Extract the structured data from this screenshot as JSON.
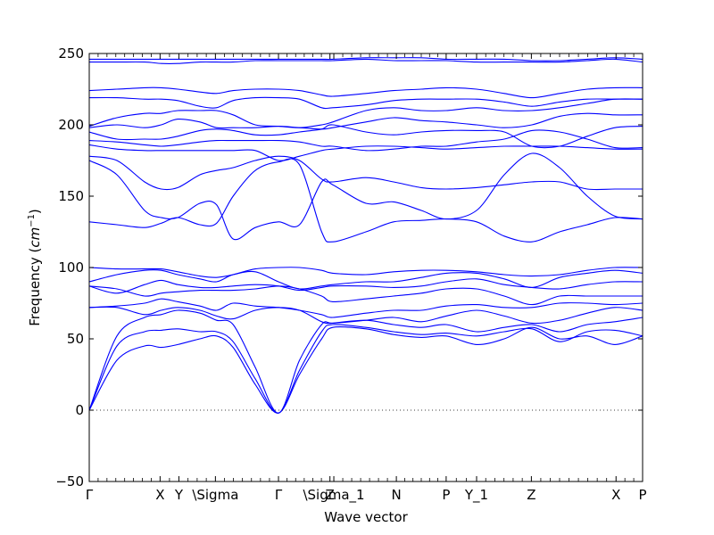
{
  "chart_data": {
    "type": "line",
    "title": "",
    "xlabel": "Wave vector",
    "ylabel": "Frequency (",
    "ylabel_math": "cm",
    "ylabel_exp": "−1",
    "ylabel_close": ")",
    "xlim": [
      0,
      1
    ],
    "ylim": [
      -50,
      250
    ],
    "yticks": [
      -50,
      0,
      50,
      100,
      150,
      200,
      250
    ],
    "zero_line": "dotted",
    "line_color": "#0000ff",
    "special_points": [
      {
        "label": "Γ",
        "x": 0.0
      },
      {
        "label": "X",
        "x": 0.128
      },
      {
        "label": "Y",
        "x": 0.162
      },
      {
        "label": "\\Sigma",
        "x": 0.228
      },
      {
        "label": "Γ",
        "x": 0.342
      },
      {
        "label": "Z",
        "x": 0.435
      },
      {
        "label": "\\Sigma_1",
        "x": 0.442
      },
      {
        "label": "N",
        "x": 0.555
      },
      {
        "label": "P",
        "x": 0.645
      },
      {
        "label": "Y_1",
        "x": 0.7
      },
      {
        "label": "Z",
        "x": 0.799
      },
      {
        "label": "X",
        "x": 0.952
      },
      {
        "label": "P",
        "x": 1.0
      }
    ],
    "series": [
      {
        "x": [
          0,
          0.05,
          0.1,
          0.13,
          0.16,
          0.2,
          0.23,
          0.26,
          0.3,
          0.342,
          0.38,
          0.42,
          0.44,
          0.5,
          0.55,
          0.6,
          0.645,
          0.7,
          0.75,
          0.8,
          0.85,
          0.9,
          0.95,
          1.0
        ],
        "values": [
          0,
          35,
          45,
          44,
          46,
          50,
          52,
          44,
          18,
          -2,
          25,
          50,
          58,
          57,
          53,
          51,
          52,
          46,
          50,
          58,
          50,
          52,
          46,
          52
        ]
      },
      {
        "x": [
          0,
          0.05,
          0.1,
          0.13,
          0.16,
          0.2,
          0.23,
          0.26,
          0.3,
          0.342,
          0.38,
          0.42,
          0.44,
          0.5,
          0.55,
          0.6,
          0.645,
          0.7,
          0.75,
          0.8,
          0.85,
          0.9,
          0.95,
          1.0
        ],
        "values": [
          0,
          45,
          55,
          56,
          57,
          55,
          55,
          48,
          22,
          -2,
          28,
          55,
          60,
          58,
          55,
          53,
          54,
          52,
          55,
          57,
          48,
          55,
          56,
          52
        ]
      },
      {
        "x": [
          0,
          0.05,
          0.1,
          0.13,
          0.16,
          0.2,
          0.23,
          0.26,
          0.3,
          0.342,
          0.38,
          0.42,
          0.44,
          0.5,
          0.55,
          0.6,
          0.645,
          0.7,
          0.75,
          0.8,
          0.85,
          0.9,
          0.95,
          1.0
        ],
        "values": [
          0,
          52,
          65,
          67,
          70,
          68,
          63,
          60,
          30,
          -2,
          35,
          60,
          61,
          63,
          60,
          58,
          60,
          55,
          58,
          60,
          55,
          60,
          62,
          65
        ]
      },
      {
        "x": [
          0,
          0.05,
          0.1,
          0.13,
          0.16,
          0.2,
          0.23,
          0.26,
          0.3,
          0.342,
          0.38,
          0.42,
          0.44,
          0.5,
          0.55,
          0.6,
          0.645,
          0.7,
          0.75,
          0.8,
          0.85,
          0.9,
          0.95,
          1.0
        ],
        "values": [
          72,
          72,
          67,
          70,
          72,
          70,
          66,
          64,
          70,
          72,
          70,
          62,
          61,
          63,
          65,
          62,
          66,
          70,
          66,
          61,
          63,
          68,
          72,
          70
        ]
      },
      {
        "x": [
          0,
          0.05,
          0.1,
          0.13,
          0.16,
          0.2,
          0.23,
          0.26,
          0.3,
          0.342,
          0.38,
          0.42,
          0.44,
          0.5,
          0.55,
          0.6,
          0.645,
          0.7,
          0.75,
          0.8,
          0.85,
          0.9,
          0.95,
          1.0
        ],
        "values": [
          72,
          73,
          75,
          78,
          76,
          73,
          70,
          75,
          73,
          72,
          70,
          67,
          65,
          68,
          70,
          70,
          73,
          74,
          72,
          72,
          75,
          75,
          74,
          75
        ]
      },
      {
        "x": [
          0,
          0.05,
          0.1,
          0.13,
          0.16,
          0.2,
          0.23,
          0.26,
          0.3,
          0.342,
          0.38,
          0.42,
          0.44,
          0.5,
          0.55,
          0.6,
          0.645,
          0.7,
          0.75,
          0.8,
          0.85,
          0.9,
          0.95,
          1.0
        ],
        "values": [
          87,
          85,
          80,
          82,
          83,
          84,
          84,
          84,
          85,
          87,
          85,
          80,
          76,
          78,
          80,
          82,
          85,
          85,
          80,
          74,
          80,
          80,
          80,
          80
        ]
      },
      {
        "x": [
          0,
          0.05,
          0.1,
          0.13,
          0.16,
          0.2,
          0.23,
          0.26,
          0.3,
          0.342,
          0.38,
          0.42,
          0.44,
          0.5,
          0.55,
          0.6,
          0.645,
          0.7,
          0.75,
          0.8,
          0.85,
          0.9,
          0.95,
          1.0
        ],
        "values": [
          87,
          82,
          88,
          91,
          88,
          86,
          86,
          87,
          88,
          87,
          84,
          86,
          87,
          87,
          86,
          87,
          90,
          92,
          88,
          86,
          85,
          88,
          90,
          90
        ]
      },
      {
        "x": [
          0,
          0.05,
          0.1,
          0.13,
          0.16,
          0.2,
          0.23,
          0.26,
          0.3,
          0.342,
          0.38,
          0.42,
          0.44,
          0.5,
          0.55,
          0.6,
          0.645,
          0.7,
          0.75,
          0.8,
          0.85,
          0.9,
          0.95,
          1.0
        ],
        "values": [
          90,
          95,
          98,
          98,
          95,
          92,
          90,
          95,
          97,
          90,
          85,
          87,
          88,
          90,
          90,
          93,
          96,
          96,
          92,
          86,
          93,
          96,
          98,
          96
        ]
      },
      {
        "x": [
          0,
          0.05,
          0.1,
          0.13,
          0.16,
          0.2,
          0.23,
          0.26,
          0.3,
          0.342,
          0.38,
          0.42,
          0.44,
          0.5,
          0.55,
          0.6,
          0.645,
          0.7,
          0.75,
          0.8,
          0.85,
          0.9,
          0.95,
          1.0
        ],
        "values": [
          100,
          99,
          99,
          99,
          97,
          94,
          93,
          95,
          99,
          100,
          100,
          98,
          96,
          95,
          97,
          98,
          98,
          97,
          95,
          94,
          95,
          98,
          100,
          100
        ]
      },
      {
        "x": [
          0,
          0.05,
          0.1,
          0.13,
          0.16,
          0.2,
          0.23,
          0.26,
          0.3,
          0.342,
          0.38,
          0.42,
          0.44,
          0.5,
          0.55,
          0.6,
          0.645,
          0.7,
          0.75,
          0.8,
          0.85,
          0.9,
          0.95,
          1.0
        ],
        "values": [
          132,
          130,
          128,
          131,
          135,
          130,
          131,
          150,
          168,
          174,
          172,
          125,
          118,
          125,
          132,
          133,
          134,
          132,
          122,
          118,
          125,
          130,
          135,
          134
        ]
      },
      {
        "x": [
          0,
          0.05,
          0.1,
          0.13,
          0.16,
          0.2,
          0.23,
          0.26,
          0.3,
          0.342,
          0.38,
          0.42,
          0.44,
          0.5,
          0.55,
          0.6,
          0.645,
          0.7,
          0.75,
          0.8,
          0.85,
          0.9,
          0.95,
          1.0
        ],
        "values": [
          175,
          165,
          140,
          135,
          135,
          145,
          144,
          120,
          128,
          132,
          130,
          160,
          158,
          145,
          146,
          140,
          134,
          140,
          165,
          180,
          170,
          150,
          136,
          134
        ]
      },
      {
        "x": [
          0,
          0.05,
          0.1,
          0.13,
          0.16,
          0.2,
          0.23,
          0.26,
          0.3,
          0.342,
          0.38,
          0.42,
          0.44,
          0.5,
          0.55,
          0.6,
          0.645,
          0.7,
          0.75,
          0.8,
          0.85,
          0.9,
          0.95,
          1.0
        ],
        "values": [
          178,
          175,
          160,
          155,
          156,
          165,
          168,
          170,
          175,
          178,
          175,
          162,
          160,
          163,
          160,
          156,
          155,
          156,
          158,
          160,
          160,
          155,
          155,
          155
        ]
      },
      {
        "x": [
          0,
          0.05,
          0.1,
          0.13,
          0.16,
          0.2,
          0.23,
          0.26,
          0.3,
          0.342,
          0.38,
          0.42,
          0.44,
          0.5,
          0.55,
          0.6,
          0.645,
          0.7,
          0.75,
          0.8,
          0.85,
          0.9,
          0.95,
          1.0
        ],
        "values": [
          186,
          183,
          182,
          182,
          182,
          182,
          182,
          182,
          182,
          175,
          178,
          182,
          183,
          185,
          185,
          184,
          183,
          184,
          185,
          185,
          185,
          184,
          183,
          183
        ]
      },
      {
        "x": [
          0,
          0.05,
          0.1,
          0.13,
          0.16,
          0.2,
          0.23,
          0.26,
          0.3,
          0.342,
          0.38,
          0.42,
          0.44,
          0.5,
          0.55,
          0.6,
          0.645,
          0.7,
          0.75,
          0.8,
          0.85,
          0.9,
          0.95,
          1.0
        ],
        "values": [
          189,
          188,
          186,
          185,
          186,
          188,
          189,
          189,
          189,
          189,
          188,
          185,
          185,
          182,
          183,
          185,
          185,
          188,
          190,
          196,
          195,
          190,
          184,
          184
        ]
      },
      {
        "x": [
          0,
          0.05,
          0.1,
          0.13,
          0.16,
          0.2,
          0.23,
          0.26,
          0.3,
          0.342,
          0.38,
          0.42,
          0.44,
          0.5,
          0.55,
          0.6,
          0.645,
          0.7,
          0.75,
          0.8,
          0.85,
          0.9,
          0.95,
          1.0
        ],
        "values": [
          195,
          190,
          190,
          190,
          192,
          196,
          197,
          196,
          193,
          193,
          195,
          197,
          200,
          195,
          193,
          195,
          196,
          196,
          195,
          185,
          185,
          192,
          198,
          199
        ]
      },
      {
        "x": [
          0,
          0.05,
          0.1,
          0.13,
          0.16,
          0.2,
          0.23,
          0.26,
          0.3,
          0.342,
          0.38,
          0.42,
          0.44,
          0.5,
          0.55,
          0.6,
          0.645,
          0.7,
          0.75,
          0.8,
          0.85,
          0.9,
          0.95,
          1.0
        ],
        "values": [
          198,
          200,
          198,
          200,
          204,
          202,
          198,
          198,
          198,
          199,
          198,
          197,
          198,
          202,
          205,
          203,
          202,
          200,
          198,
          200,
          206,
          208,
          207,
          207
        ]
      },
      {
        "x": [
          0,
          0.05,
          0.1,
          0.13,
          0.16,
          0.2,
          0.23,
          0.26,
          0.3,
          0.342,
          0.38,
          0.42,
          0.44,
          0.5,
          0.55,
          0.6,
          0.645,
          0.7,
          0.75,
          0.8,
          0.85,
          0.9,
          0.95,
          1.0
        ],
        "values": [
          199,
          205,
          208,
          208,
          210,
          210,
          210,
          207,
          200,
          199,
          198,
          200,
          202,
          210,
          212,
          210,
          210,
          212,
          210,
          210,
          212,
          215,
          218,
          218
        ]
      },
      {
        "x": [
          0,
          0.05,
          0.1,
          0.13,
          0.16,
          0.2,
          0.23,
          0.26,
          0.3,
          0.342,
          0.38,
          0.42,
          0.44,
          0.5,
          0.55,
          0.6,
          0.645,
          0.7,
          0.75,
          0.8,
          0.85,
          0.9,
          0.95,
          1.0
        ],
        "values": [
          219,
          219,
          218,
          218,
          217,
          213,
          212,
          217,
          219,
          219,
          218,
          212,
          212,
          214,
          217,
          218,
          218,
          218,
          216,
          213,
          216,
          218,
          218,
          218
        ]
      },
      {
        "x": [
          0,
          0.05,
          0.1,
          0.13,
          0.16,
          0.2,
          0.23,
          0.26,
          0.3,
          0.342,
          0.38,
          0.42,
          0.44,
          0.5,
          0.55,
          0.6,
          0.645,
          0.7,
          0.75,
          0.8,
          0.85,
          0.9,
          0.95,
          1.0
        ],
        "values": [
          224,
          225,
          226,
          226,
          225,
          223,
          222,
          224,
          225,
          225,
          224,
          221,
          220,
          222,
          224,
          225,
          226,
          225,
          222,
          219,
          222,
          225,
          226,
          226
        ]
      },
      {
        "x": [
          0,
          0.05,
          0.1,
          0.13,
          0.16,
          0.2,
          0.23,
          0.26,
          0.3,
          0.342,
          0.38,
          0.42,
          0.44,
          0.5,
          0.55,
          0.6,
          0.645,
          0.7,
          0.75,
          0.8,
          0.85,
          0.9,
          0.95,
          1.0
        ],
        "values": [
          244,
          244,
          244,
          243,
          243,
          244,
          244,
          244,
          245,
          245,
          245,
          245,
          245,
          246,
          245,
          245,
          245,
          244,
          244,
          244,
          244,
          245,
          246,
          244
        ]
      },
      {
        "x": [
          0,
          0.05,
          0.1,
          0.13,
          0.16,
          0.2,
          0.23,
          0.26,
          0.3,
          0.342,
          0.38,
          0.42,
          0.44,
          0.5,
          0.55,
          0.6,
          0.645,
          0.7,
          0.75,
          0.8,
          0.85,
          0.9,
          0.95,
          1.0
        ],
        "values": [
          246,
          246,
          246,
          246,
          246,
          246,
          246,
          246,
          246,
          246,
          246,
          246,
          246,
          247,
          247,
          247,
          246,
          246,
          246,
          245,
          245,
          246,
          247,
          246
        ]
      }
    ]
  }
}
